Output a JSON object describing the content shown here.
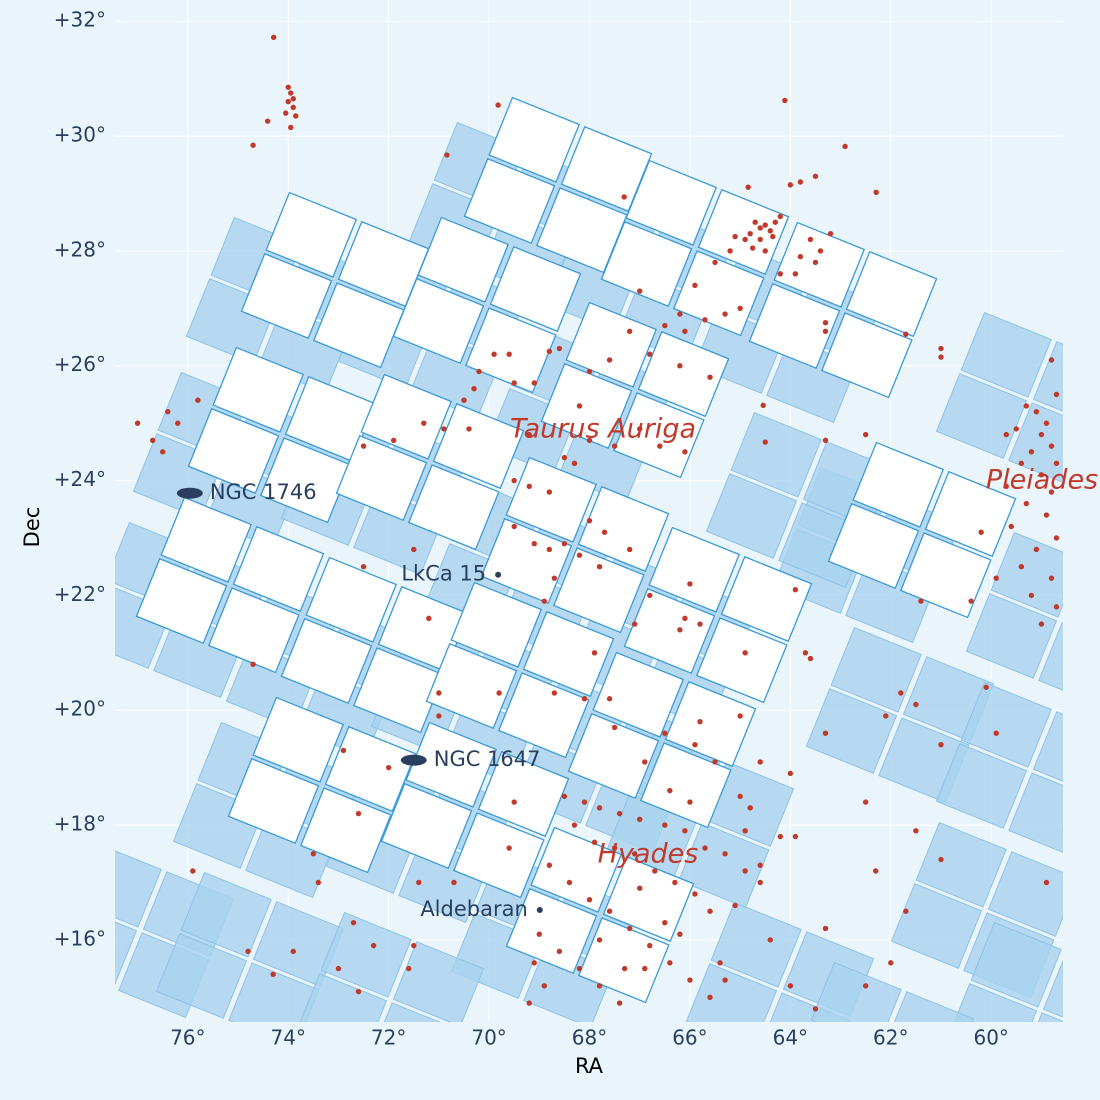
{
  "chart_data": {
    "type": "scatter",
    "xlabel": "RA",
    "ylabel": "Dec",
    "xlim": [
      77.45,
      58.57
    ],
    "ylim": [
      14.57,
      32.37
    ],
    "xticks": [
      {
        "value": 76,
        "label": "76°"
      },
      {
        "value": 74,
        "label": "74°"
      },
      {
        "value": 72,
        "label": "72°"
      },
      {
        "value": 70,
        "label": "70°"
      },
      {
        "value": 68,
        "label": "68°"
      },
      {
        "value": 66,
        "label": "66°"
      },
      {
        "value": 64,
        "label": "64°"
      },
      {
        "value": 62,
        "label": "62°"
      },
      {
        "value": 60,
        "label": "60°"
      }
    ],
    "yticks": [
      {
        "value": 16,
        "label": "+16°"
      },
      {
        "value": 18,
        "label": "+18°"
      },
      {
        "value": 20,
        "label": "+20°"
      },
      {
        "value": 22,
        "label": "+22°"
      },
      {
        "value": 24,
        "label": "+24°"
      },
      {
        "value": 26,
        "label": "+26°"
      },
      {
        "value": 28,
        "label": "+28°"
      },
      {
        "value": 30,
        "label": "+30°"
      },
      {
        "value": 32,
        "label": "+32°"
      }
    ],
    "grid": true,
    "annotations": [
      "Taurus Auriga",
      "Pleiades",
      "Hyades"
    ],
    "objects": [
      {
        "name": "NGC 1746",
        "x": 75.96,
        "y": 23.78,
        "symbol": "ellipse"
      },
      {
        "name": "NGC 1647",
        "x": 71.5,
        "y": 19.13,
        "symbol": "ellipse"
      },
      {
        "name": "LkCa 15",
        "x": 69.82,
        "y": 22.36,
        "symbol": "dot"
      },
      {
        "name": "Aldebaran",
        "x": 68.99,
        "y": 16.52,
        "symbol": "dot"
      }
    ],
    "series": [
      {
        "color": "#c0392b",
        "x": [
          73.95,
          74.0,
          73.9,
          74.05,
          73.85,
          73.95,
          74.0,
          73.9,
          74.29,
          74.41,
          74.7,
          70.84,
          69.82,
          64.11,
          62.91,
          62.29,
          67.31,
          64.7,
          64.6,
          64.5,
          64.8,
          64.4,
          64.9,
          64.6,
          65.1,
          64.3,
          64.2,
          64.75,
          65.2,
          65.5,
          64.5,
          64.35,
          64.84,
          64.0,
          63.8,
          63.5,
          63.6,
          63.4,
          63.8,
          63.2,
          63.5,
          63.9,
          64.2,
          65.0,
          65.3,
          65.7,
          66.2,
          66.1,
          66.5,
          65.9,
          67.0,
          63.3,
          63.3,
          61.7,
          61.0,
          61.0,
          64.54,
          64.5,
          63.3,
          62.5,
          70.5,
          70.3,
          70.2,
          69.9,
          69.6,
          69.5,
          69.1,
          68.8,
          68.6,
          68.0,
          67.6,
          67.2,
          66.8,
          66.2,
          65.6,
          67.0,
          66.6,
          66.1,
          68.5,
          68.3,
          68.0,
          67.5,
          68.2,
          69.2,
          70.4,
          71.3,
          70.9,
          71.9,
          72.5,
          69.5,
          69.2,
          68.8,
          69.5,
          69.1,
          68.8,
          68.5,
          68.2,
          68.0,
          67.7,
          67.2,
          68.7,
          67.8,
          68.9,
          66.8,
          66.0,
          65.8,
          66.1,
          63.9,
          63.7,
          63.6,
          64.9,
          67.9,
          67.1,
          66.2,
          59.3,
          59.1,
          58.9,
          58.7,
          59.0,
          58.8,
          59.5,
          59.2,
          58.7,
          59.4,
          59.0,
          58.8,
          59.3,
          58.9,
          59.6,
          58.7,
          59.1,
          59.4,
          58.8,
          59.2,
          58.7,
          59.0,
          59.7,
          60.2,
          59.9,
          60.4,
          61.4,
          58.8,
          59.7,
          77.0,
          76.7,
          76.4,
          76.2,
          75.8,
          76.5,
          74.7,
          73.5,
          73.4,
          74.8,
          74.3,
          73.9,
          72.7,
          72.6,
          73.0,
          71.6,
          71.5,
          72.3,
          75.9,
          72.5,
          71.5,
          71.2,
          71.0,
          71.0,
          72.0,
          72.9,
          72.6,
          71.4,
          70.7,
          69.6,
          69.8,
          69.5,
          68.7,
          68.1,
          67.6,
          67.5,
          66.9,
          66.5,
          65.9,
          65.5,
          65.0,
          64.6,
          64.0,
          62.5,
          63.3,
          62.1,
          61.8,
          61.5,
          61.0,
          59.9,
          60.1,
          61.5,
          61.0,
          62.3,
          58.9,
          61.7,
          62.0,
          62.5,
          68.5,
          68.1,
          67.8,
          67.4,
          67.0,
          66.5,
          66.1,
          65.7,
          65.3,
          64.9,
          64.6,
          64.2,
          63.9,
          65.0,
          64.8,
          68.3,
          67.9,
          67.5,
          67.1,
          66.7,
          66.3,
          65.9,
          65.6,
          65.1,
          68.8,
          68.4,
          68.0,
          67.6,
          67.2,
          66.8,
          66.4,
          66.0,
          65.6,
          69.0,
          68.6,
          68.2,
          67.8,
          67.4,
          66.9,
          66.5,
          67.0,
          67.8,
          68.9,
          69.2,
          65.4,
          64.4,
          64.0,
          63.5,
          64.9,
          66.0,
          66.4,
          69.1,
          67.3,
          66.2,
          65.3,
          64.6,
          65.8,
          63.3
        ],
        "y": [
          30.75,
          30.6,
          30.5,
          30.4,
          30.35,
          30.15,
          30.85,
          30.65,
          31.72,
          30.26,
          29.84,
          29.67,
          30.54,
          30.62,
          29.82,
          29.02,
          28.94,
          28.5,
          28.4,
          28.45,
          28.3,
          28.35,
          28.2,
          28.2,
          28.25,
          28.5,
          28.6,
          28.05,
          28.0,
          27.8,
          28.0,
          28.25,
          29.11,
          29.15,
          29.2,
          29.3,
          28.2,
          28.0,
          27.9,
          28.3,
          27.8,
          27.6,
          27.6,
          27.0,
          26.9,
          26.8,
          26.9,
          26.6,
          26.7,
          27.4,
          27.3,
          26.75,
          26.6,
          26.55,
          26.3,
          26.15,
          25.31,
          24.67,
          24.7,
          24.8,
          25.4,
          25.6,
          25.9,
          26.2,
          26.2,
          25.7,
          25.7,
          26.25,
          26.3,
          25.9,
          26.1,
          26.6,
          26.2,
          26.0,
          25.8,
          24.9,
          24.6,
          24.5,
          24.4,
          24.3,
          24.7,
          24.6,
          25.3,
          24.8,
          24.9,
          25.0,
          24.9,
          24.7,
          24.6,
          24.0,
          23.9,
          23.8,
          23.2,
          22.9,
          22.8,
          22.9,
          22.7,
          23.3,
          23.1,
          22.8,
          22.3,
          22.5,
          21.9,
          22.0,
          22.2,
          21.5,
          21.6,
          22.1,
          21.0,
          20.9,
          21.0,
          21.0,
          21.5,
          21.4,
          25.3,
          25.2,
          25.0,
          25.5,
          24.8,
          24.6,
          24.9,
          24.5,
          24.3,
          24.3,
          24.1,
          23.8,
          23.6,
          23.4,
          23.2,
          23.0,
          22.8,
          22.5,
          22.3,
          22.0,
          21.8,
          21.5,
          23.9,
          23.1,
          22.3,
          21.9,
          21.9,
          26.1,
          24.8,
          25.0,
          24.7,
          25.2,
          25.0,
          25.4,
          24.5,
          20.8,
          17.5,
          17.0,
          15.8,
          15.4,
          15.8,
          16.3,
          15.1,
          15.5,
          15.5,
          15.9,
          15.9,
          17.2,
          22.5,
          22.8,
          21.6,
          20.3,
          19.9,
          19.0,
          19.3,
          18.2,
          17.0,
          17.0,
          17.6,
          20.3,
          18.4,
          20.3,
          20.2,
          20.2,
          19.7,
          19.1,
          19.6,
          19.4,
          19.1,
          19.9,
          19.1,
          18.9,
          18.4,
          19.6,
          19.9,
          20.3,
          20.1,
          19.4,
          19.6,
          20.4,
          17.9,
          17.4,
          17.2,
          17.0,
          16.5,
          15.6,
          15.2,
          18.5,
          18.4,
          18.3,
          18.2,
          18.1,
          18.0,
          17.9,
          17.6,
          17.5,
          17.2,
          17.3,
          17.8,
          17.8,
          18.5,
          18.3,
          18.0,
          17.7,
          17.6,
          17.5,
          17.2,
          17.0,
          16.8,
          16.5,
          16.6,
          17.3,
          17.0,
          16.7,
          16.5,
          16.2,
          15.9,
          15.6,
          15.3,
          15.0,
          16.1,
          15.8,
          15.5,
          15.2,
          14.9,
          15.5,
          16.3,
          16.9,
          16.0,
          15.2,
          14.9,
          15.6,
          16.0,
          15.2,
          14.8,
          17.9,
          18.4,
          18.6,
          15.6,
          15.5,
          16.1,
          15.3,
          17.0,
          19.8,
          16.2
        ]
      }
    ]
  }
}
